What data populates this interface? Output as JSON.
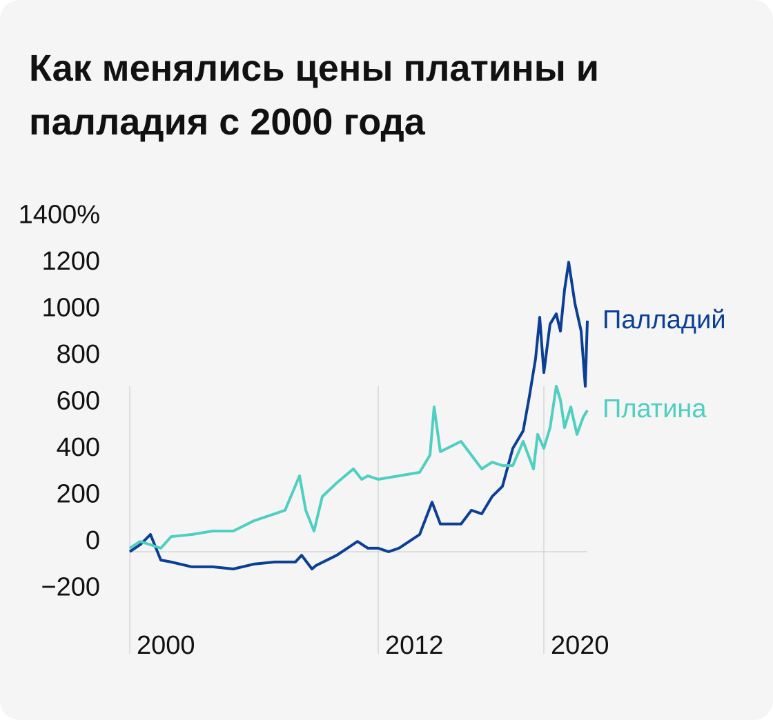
{
  "chart_data": {
    "type": "line",
    "title": "Как менялись цены платины и палладия с 2000 года",
    "xlim": [
      2000,
      2022.1
    ],
    "xticks": [
      2000,
      2012,
      2020
    ],
    "ylim": [
      -200,
      1400
    ],
    "yticks": [
      {
        "value": 1400,
        "label": "1400%"
      },
      1200,
      1000,
      800,
      600,
      400,
      200,
      0,
      {
        "value": -200,
        "label": "−200"
      }
    ],
    "series": [
      {
        "name": "Палладий",
        "color": "#0b3f94",
        "x": [
          2000,
          2000.5,
          2001,
          2001.5,
          2002,
          2003,
          2004,
          2005,
          2006,
          2007,
          2008,
          2008.3,
          2008.8,
          2009,
          2010,
          2011,
          2011.5,
          2012,
          2012.5,
          2013,
          2014,
          2014.6,
          2015,
          2016,
          2016.5,
          2017,
          2017.5,
          2018,
          2018.5,
          2019,
          2019.3,
          2019.6,
          2019.8,
          2020,
          2020.3,
          2020.6,
          2020.8,
          2021,
          2021.2,
          2021.5,
          2021.8,
          2022,
          2022.1
        ],
        "values": [
          0,
          30,
          74,
          -36,
          -44,
          -65,
          -65,
          -74,
          -53,
          -44,
          -44,
          -15,
          -74,
          -59,
          -15,
          44,
          15,
          15,
          0,
          15,
          74,
          213,
          119,
          119,
          178,
          163,
          237,
          281,
          444,
          519,
          667,
          830,
          1007,
          770,
          978,
          1022,
          948,
          1126,
          1244,
          1067,
          948,
          711,
          993
        ]
      },
      {
        "name": "Платина",
        "color": "#4fcfc0",
        "x": [
          2000,
          2000.5,
          2001,
          2001.5,
          2002,
          2003,
          2004,
          2005,
          2006,
          2007,
          2007.5,
          2008.2,
          2008.5,
          2008.9,
          2009.3,
          2010,
          2010.8,
          2011.2,
          2011.5,
          2012,
          2013,
          2014,
          2014.5,
          2014.7,
          2015,
          2016,
          2016.5,
          2017,
          2017.5,
          2018,
          2018.5,
          2019,
          2019.5,
          2019.7,
          2020,
          2020.3,
          2020.6,
          2020.8,
          2021,
          2021.3,
          2021.6,
          2021.9,
          2022.1
        ],
        "values": [
          15,
          44,
          30,
          15,
          65,
          74,
          89,
          89,
          133,
          163,
          178,
          326,
          178,
          89,
          237,
          296,
          356,
          311,
          326,
          311,
          326,
          341,
          415,
          622,
          430,
          474,
          415,
          356,
          385,
          370,
          370,
          474,
          356,
          504,
          444,
          533,
          711,
          652,
          533,
          622,
          504,
          578,
          607
        ]
      }
    ]
  }
}
